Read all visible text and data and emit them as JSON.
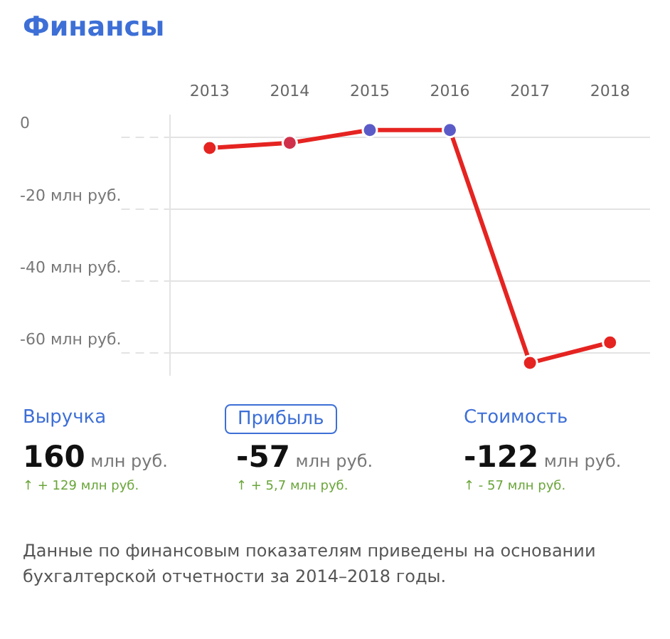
{
  "chart_data": {
    "type": "line",
    "title": "Финансы",
    "categories": [
      "2013",
      "2014",
      "2015",
      "2016",
      "2017",
      "2018"
    ],
    "series": [
      {
        "color": "#e52421",
        "colors": [
          "#e52421",
          "#d0304a",
          "#5b5bc8",
          "#5b5bc8",
          "#e52421",
          "#e52421"
        ],
        "values": [
          -3,
          -1.6,
          2,
          2,
          -62.7,
          -57
        ]
      }
    ],
    "ylim": [
      -66,
      6
    ],
    "yticks": [
      {
        "value": 0,
        "label": "0"
      },
      {
        "value": -20,
        "label": "-20 млн руб."
      },
      {
        "value": -40,
        "label": "-40 млн руб."
      },
      {
        "value": -60,
        "label": "-60 млн руб."
      }
    ],
    "grid": "y",
    "marker": "circle",
    "line_style": "solid",
    "legend": false,
    "annotations": [
      "Выручка",
      "Прибыль",
      "Стоимость",
      "160 млн руб.",
      "-57 млн руб.",
      "-122 млн руб.",
      "↑ + 129 млн руб.",
      "↑ + 5,7 млн руб.",
      "↑ - 57 млн руб.",
      "Данные по финансовым показателям приведены на основании бухгалтерской отчетности за 2014–2018 годы."
    ]
  }
}
